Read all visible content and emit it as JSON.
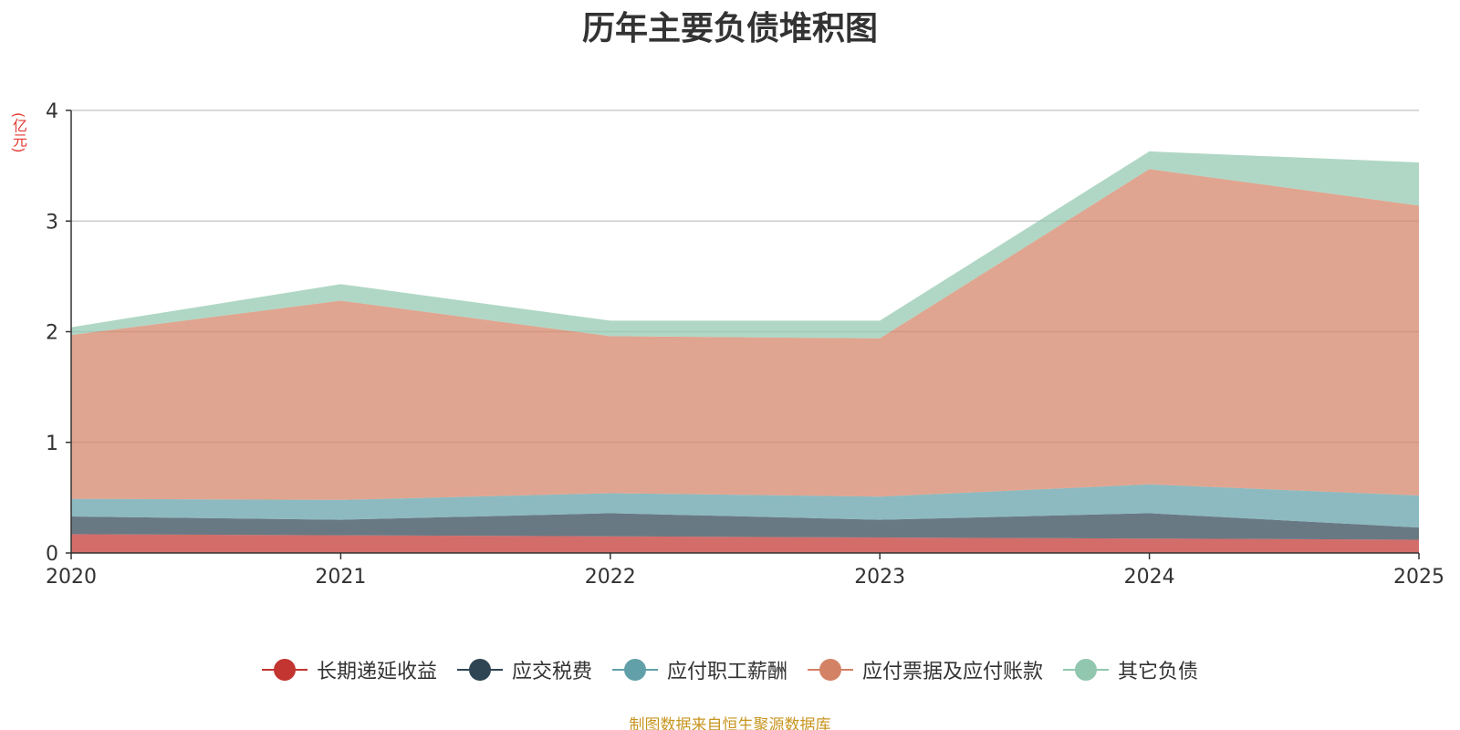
{
  "chart_data": {
    "type": "area",
    "stacked": true,
    "title": "历年主要负债堆积图",
    "ylabel": "(亿元)",
    "xlabel": "",
    "x": [
      "2020",
      "2021",
      "2022",
      "2023",
      "2024",
      "2025"
    ],
    "ylim": [
      0,
      4
    ],
    "yticks": [
      "0",
      "1",
      "2",
      "3",
      "4"
    ],
    "grid": true,
    "legend_position": "bottom",
    "series": [
      {
        "name": "长期递延收益",
        "color": "#c23531",
        "values": [
          0.17,
          0.16,
          0.15,
          0.14,
          0.13,
          0.12
        ]
      },
      {
        "name": "应交税费",
        "color": "#2f4554",
        "values": [
          0.16,
          0.14,
          0.21,
          0.16,
          0.23,
          0.11
        ]
      },
      {
        "name": "应付职工薪酬",
        "color": "#61a0a8",
        "values": [
          0.16,
          0.18,
          0.18,
          0.21,
          0.26,
          0.29
        ]
      },
      {
        "name": "应付票据及应付账款",
        "color": "#d48265",
        "values": [
          1.48,
          1.8,
          1.42,
          1.43,
          2.85,
          2.62
        ]
      },
      {
        "name": "其它负债",
        "color": "#91c7ae",
        "values": [
          0.07,
          0.15,
          0.14,
          0.16,
          0.16,
          0.39
        ]
      }
    ],
    "source_note": "制图数据来自恒生聚源数据库"
  }
}
